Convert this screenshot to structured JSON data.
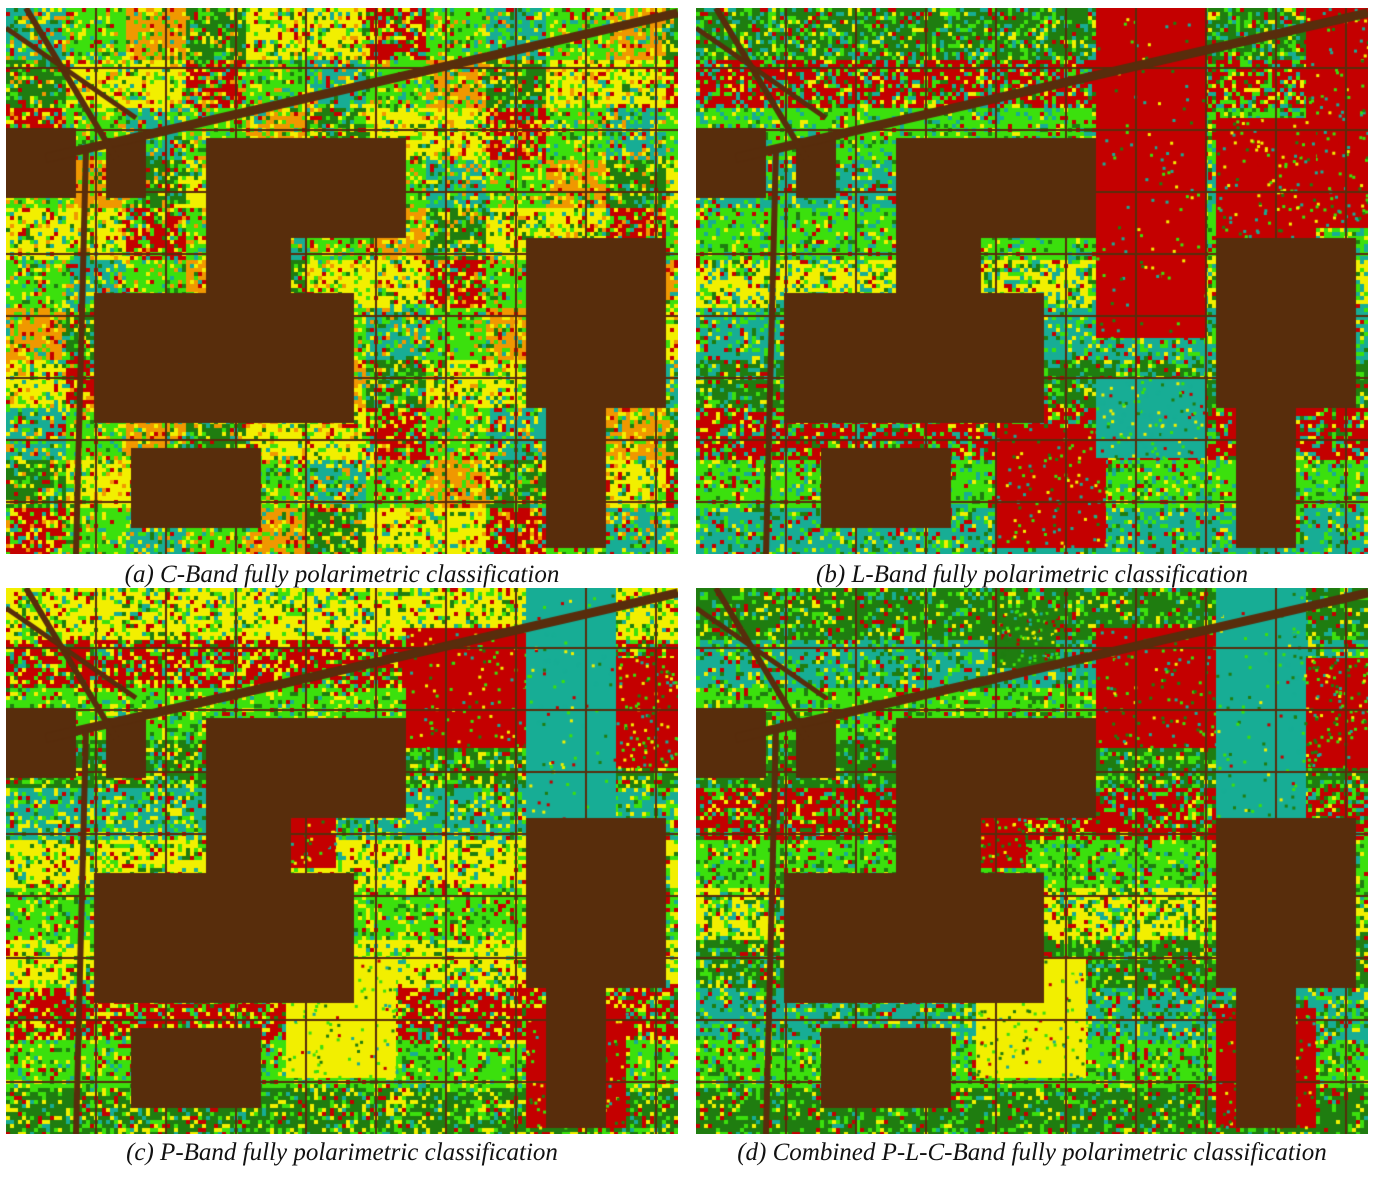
{
  "figure": {
    "colors": {
      "bare_soil": "#582d0c",
      "red": "#c40000",
      "teal": "#17ad95",
      "green": "#3be00d",
      "dark_green": "#1f7d10",
      "yellow": "#f2ef00",
      "orange": "#f09800"
    },
    "panels": [
      {
        "id": "a",
        "caption": "(a) C-Band fully polarimetric classification"
      },
      {
        "id": "b",
        "caption": "(b) L-Band fully polarimetric classification"
      },
      {
        "id": "c",
        "caption": "(c) P-Band fully polarimetric classification"
      },
      {
        "id": "d",
        "caption": "(d) Combined P-L-C-Band fully polarimetric classification"
      }
    ]
  }
}
